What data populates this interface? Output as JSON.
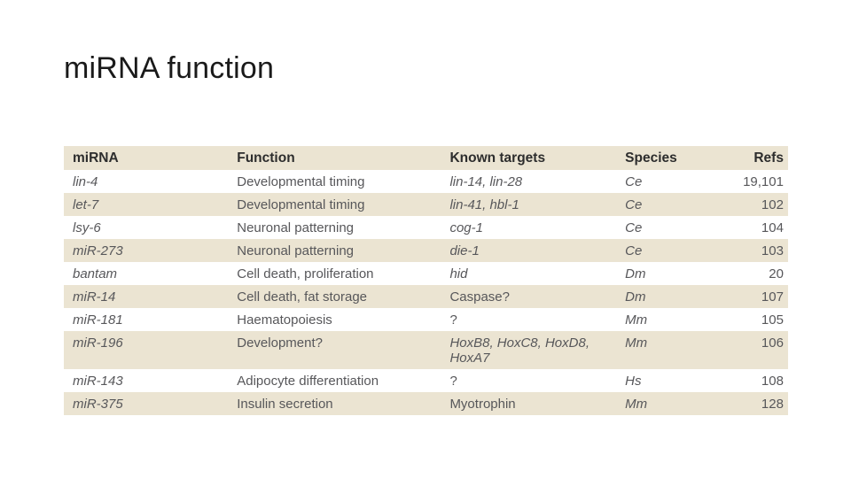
{
  "slide": {
    "title": "miRNA function"
  },
  "table": {
    "headers": [
      "miRNA",
      "Function",
      "Known targets",
      "Species",
      "Refs"
    ],
    "rows": [
      {
        "mirna": "lin-4",
        "function": "Developmental timing",
        "targets": "lin-14, lin-28",
        "targets_italic": true,
        "species": "Ce",
        "refs": "19,101"
      },
      {
        "mirna": "let-7",
        "function": "Developmental timing",
        "targets": "lin-41, hbl-1",
        "targets_italic": true,
        "species": "Ce",
        "refs": "102"
      },
      {
        "mirna": "lsy-6",
        "function": "Neuronal patterning",
        "targets": "cog-1",
        "targets_italic": true,
        "species": "Ce",
        "refs": "104"
      },
      {
        "mirna": "miR-273",
        "function": "Neuronal patterning",
        "targets": "die-1",
        "targets_italic": true,
        "species": "Ce",
        "refs": "103"
      },
      {
        "mirna": "bantam",
        "function": "Cell death, proliferation",
        "targets": "hid",
        "targets_italic": true,
        "species": "Dm",
        "refs": "20"
      },
      {
        "mirna": "miR-14",
        "function": "Cell death, fat storage",
        "targets": "Caspase?",
        "targets_italic": false,
        "species": "Dm",
        "refs": "107"
      },
      {
        "mirna": "miR-181",
        "function": "Haematopoiesis",
        "targets": "?",
        "targets_italic": false,
        "species": "Mm",
        "refs": "105"
      },
      {
        "mirna": "miR-196",
        "function": "Development?",
        "targets": "HoxB8, HoxC8, HoxD8, HoxA7",
        "targets_italic": true,
        "species": "Mm",
        "refs": "106"
      },
      {
        "mirna": "miR-143",
        "function": "Adipocyte differentiation",
        "targets": "?",
        "targets_italic": false,
        "species": "Hs",
        "refs": "108"
      },
      {
        "mirna": "miR-375",
        "function": "Insulin secretion",
        "targets": "Myotrophin",
        "targets_italic": false,
        "species": "Mm",
        "refs": "128"
      }
    ],
    "colors": {
      "header_bg": "#ebe4d2",
      "shaded_row_bg": "#ebe4d2",
      "plain_row_bg": "#ffffff",
      "header_text": "#2d2d2d",
      "body_text": "#57575a"
    }
  }
}
